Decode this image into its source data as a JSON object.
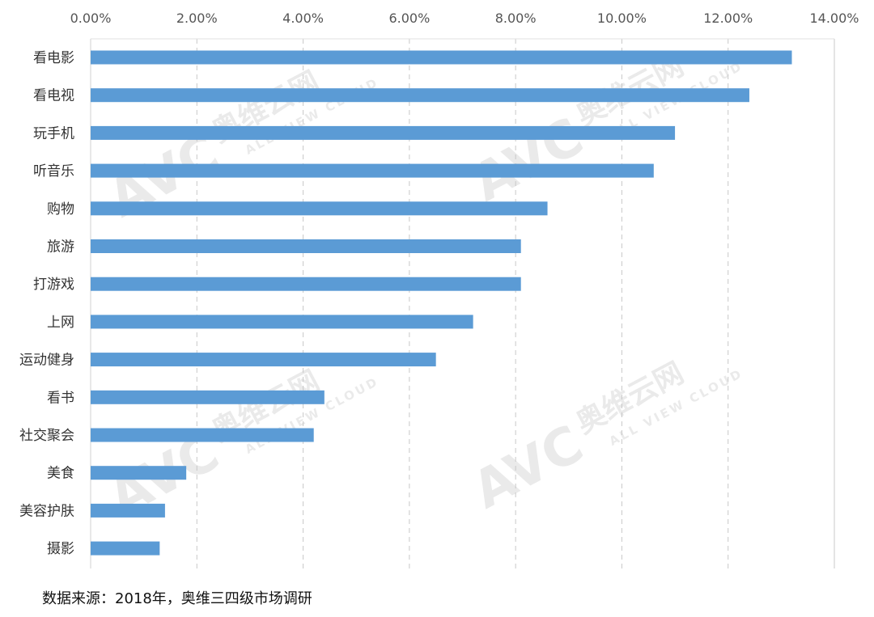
{
  "chart_data": {
    "type": "bar",
    "orientation": "horizontal",
    "categories": [
      "看电影",
      "看电视",
      "玩手机",
      "听音乐",
      "购物",
      "旅游",
      "打游戏",
      "上网",
      "运动健身",
      "看书",
      "社交聚会",
      "美食",
      "美容护肤",
      "摄影"
    ],
    "values": [
      13.2,
      12.4,
      11.0,
      10.6,
      8.6,
      8.1,
      8.1,
      7.2,
      6.5,
      4.4,
      4.2,
      1.8,
      1.4,
      1.3
    ],
    "value_unit": "%",
    "xlim": [
      0,
      14
    ],
    "xticks": [
      0,
      2,
      4,
      6,
      8,
      10,
      12,
      14
    ],
    "xtick_labels": [
      "0.00%",
      "2.00%",
      "4.00%",
      "6.00%",
      "8.00%",
      "10.00%",
      "12.00%",
      "14.00%"
    ],
    "axis_position": "top",
    "grid": "vertical dashed",
    "bar_color": "#5b9bd5",
    "title": "",
    "xlabel": "",
    "ylabel": ""
  },
  "watermark": {
    "logo": "AVC",
    "cn": "奥维云网",
    "en": "ALL VIEW CLOUD"
  },
  "source_note": "数据来源：2018年，奥维三四级市场调研"
}
